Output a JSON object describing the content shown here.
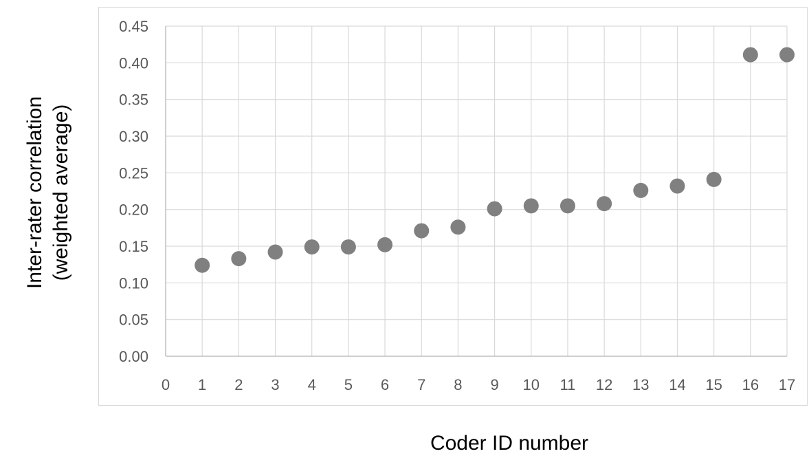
{
  "chart_data": {
    "type": "scatter",
    "title": "",
    "xlabel": "Coder ID number",
    "ylabel_lines": [
      "Inter-rater correlation",
      "(weighted average)"
    ],
    "xlim": [
      0,
      17
    ],
    "ylim": [
      0,
      0.45
    ],
    "x_ticks": [
      "0",
      "1",
      "2",
      "3",
      "4",
      "5",
      "6",
      "7",
      "8",
      "9",
      "10",
      "11",
      "12",
      "13",
      "14",
      "15",
      "16",
      "17"
    ],
    "y_ticks": [
      "0.00",
      "0.05",
      "0.10",
      "0.15",
      "0.20",
      "0.25",
      "0.30",
      "0.35",
      "0.40",
      "0.45"
    ],
    "grid": true,
    "legend": "none",
    "marker_color": "#808080",
    "grid_color": "#d9d9d9",
    "axis_color": "#bfbfbf",
    "tick_label_color": "#595959",
    "series": [
      {
        "x": [
          1,
          2,
          3,
          4,
          5,
          6,
          7,
          8,
          9,
          10,
          11,
          12,
          13,
          14,
          15,
          16,
          17
        ],
        "y": [
          0.124,
          0.133,
          0.142,
          0.149,
          0.149,
          0.152,
          0.171,
          0.176,
          0.201,
          0.205,
          0.205,
          0.208,
          0.226,
          0.232,
          0.241,
          0.411,
          0.411
        ]
      }
    ]
  }
}
